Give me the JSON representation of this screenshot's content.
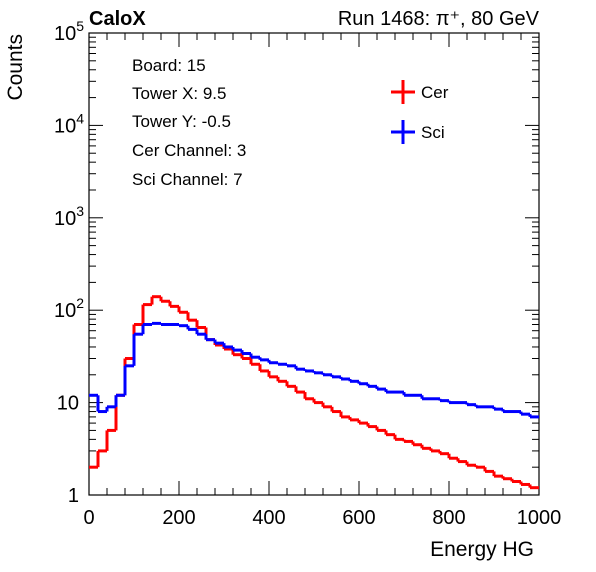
{
  "header": {
    "experiment": "CaloX",
    "run_info": "Run 1468:   π⁺, 80 GeV"
  },
  "info_box": [
    "Board: 15",
    "Tower X: 9.5",
    "Tower Y: -0.5",
    "Cer Channel: 3",
    "Sci Channel: 7"
  ],
  "chart_data": {
    "type": "line",
    "title": "",
    "xlabel": "Energy HG",
    "ylabel": "Counts",
    "xlim": [
      0,
      1000
    ],
    "ylim": [
      1,
      100000
    ],
    "yscale": "log",
    "x_ticks": [
      "0",
      "200",
      "400",
      "600",
      "800",
      "1000"
    ],
    "y_ticks": [
      "1",
      "10",
      "10^2",
      "10^3",
      "10^4",
      "10^5"
    ],
    "legend_position": "top-right",
    "x": [
      0,
      20,
      40,
      60,
      80,
      100,
      120,
      140,
      160,
      180,
      200,
      220,
      240,
      260,
      280,
      300,
      320,
      340,
      360,
      380,
      400,
      420,
      440,
      460,
      480,
      500,
      520,
      540,
      560,
      580,
      600,
      620,
      640,
      660,
      680,
      700,
      720,
      740,
      760,
      780,
      800,
      820,
      840,
      860,
      880,
      900,
      920,
      940,
      960,
      980,
      1000
    ],
    "series": [
      {
        "name": "Cer",
        "color": "#ff0000",
        "values": [
          2,
          3,
          5,
          12,
          30,
          70,
          115,
          140,
          125,
          110,
          95,
          78,
          65,
          48,
          42,
          38,
          33,
          30,
          26,
          22,
          19,
          17,
          15,
          13,
          11,
          10,
          9,
          8,
          7,
          6.5,
          6,
          5.5,
          5,
          4.5,
          4,
          3.8,
          3.5,
          3.2,
          3,
          2.8,
          2.5,
          2.3,
          2.1,
          2,
          1.8,
          1.6,
          1.5,
          1.4,
          1.3,
          1.2,
          1.2
        ]
      },
      {
        "name": "Sci",
        "color": "#0000ff",
        "values": [
          12,
          8,
          9,
          12,
          25,
          55,
          70,
          72,
          70,
          70,
          68,
          62,
          55,
          48,
          44,
          40,
          37,
          34,
          31,
          29,
          27,
          26,
          25,
          23,
          22,
          21,
          20,
          19,
          18,
          17,
          16,
          15,
          14,
          13,
          13,
          12,
          12,
          11,
          11,
          10.5,
          10,
          10,
          9.5,
          9,
          9,
          8.5,
          8,
          8,
          7.5,
          7,
          7
        ]
      }
    ]
  }
}
